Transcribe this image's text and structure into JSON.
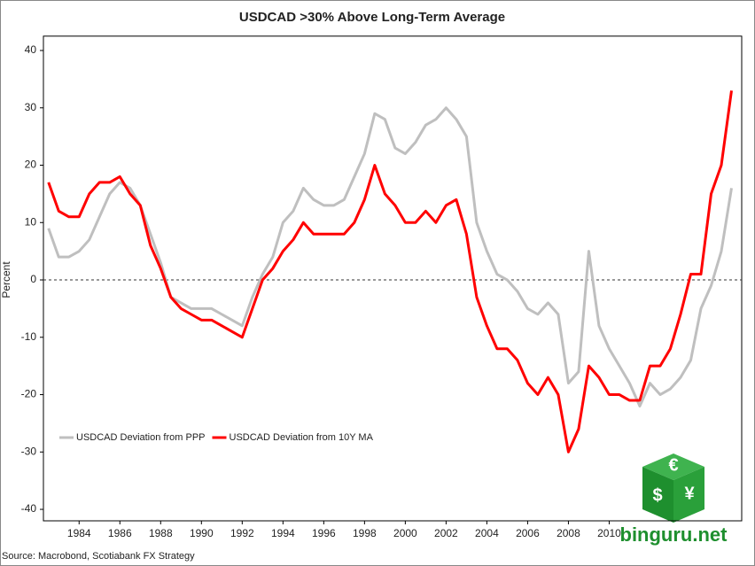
{
  "chart_data": {
    "type": "line",
    "title": "USDCAD >30% Above Long-Term Average",
    "y_label": "Percent",
    "source": "Source: Macrobond, Scotiabank FX Strategy",
    "x": [
      1982.5,
      1983,
      1983.5,
      1984,
      1984.5,
      1985,
      1985.5,
      1986,
      1986.5,
      1987,
      1987.5,
      1988,
      1988.5,
      1989,
      1989.5,
      1990,
      1990.5,
      1991,
      1991.5,
      1992,
      1992.5,
      1993,
      1993.5,
      1994,
      1994.5,
      1995,
      1995.5,
      1996,
      1996.5,
      1997,
      1997.5,
      1998,
      1998.5,
      1999,
      1999.5,
      2000,
      2000.5,
      2001,
      2001.5,
      2002,
      2002.5,
      2003,
      2003.5,
      2004,
      2004.5,
      2005,
      2005.5,
      2006,
      2006.5,
      2007,
      2007.5,
      2008,
      2008.5,
      2009,
      2009.5,
      2010,
      2010.5,
      2011,
      2011.5,
      2012,
      2012.5,
      2013,
      2013.5,
      2014,
      2014.5,
      2015,
      2015.5,
      2016
    ],
    "series": [
      {
        "name": "USDCAD Deviation from PPP",
        "color": "#bfbfbf",
        "values": [
          9,
          4,
          4,
          5,
          7,
          11,
          15,
          17,
          16,
          13,
          8,
          3,
          -3,
          -4,
          -5,
          -5,
          -5,
          -6,
          -7,
          -8,
          -3,
          1,
          4,
          10,
          12,
          16,
          14,
          13,
          13,
          14,
          18,
          22,
          29,
          28,
          23,
          22,
          24,
          27,
          28,
          30,
          28,
          25,
          10,
          5,
          1,
          0,
          -2,
          -5,
          -6,
          -4,
          -6,
          -18,
          -16,
          5,
          -8,
          -12,
          -15,
          -18,
          -22,
          -18,
          -20,
          -19,
          -17,
          -14,
          -5,
          -1,
          5,
          16
        ]
      },
      {
        "name": "USDCAD Deviation from 10Y MA",
        "color": "#ff0000",
        "values": [
          17,
          12,
          11,
          11,
          15,
          17,
          17,
          18,
          15,
          13,
          6,
          2,
          -3,
          -5,
          -6,
          -7,
          -7,
          -8,
          -9,
          -10,
          -5,
          0,
          2,
          5,
          7,
          10,
          8,
          8,
          8,
          8,
          10,
          14,
          20,
          15,
          13,
          10,
          10,
          12,
          10,
          13,
          14,
          8,
          -3,
          -8,
          -12,
          -12,
          -14,
          -18,
          -20,
          -17,
          -20,
          -30,
          -26,
          -15,
          -17,
          -20,
          -20,
          -21,
          -21,
          -15,
          -15,
          -12,
          -6,
          1,
          1,
          15,
          20,
          33
        ]
      }
    ],
    "xlim": [
      1982.25,
      2016.5
    ],
    "ylim": [
      -42,
      42.5
    ],
    "xticks": [
      1984,
      1986,
      1988,
      1990,
      1992,
      1994,
      1996,
      1998,
      2000,
      2002,
      2004,
      2006,
      2008,
      2010
    ],
    "yticks": [
      -40,
      -30,
      -20,
      -10,
      0,
      10,
      20,
      30,
      40
    ],
    "reference_line": 0,
    "legend": "lower-left"
  },
  "logo": {
    "text": "binguru.net",
    "symbols": [
      "€",
      "$",
      "¥"
    ]
  }
}
